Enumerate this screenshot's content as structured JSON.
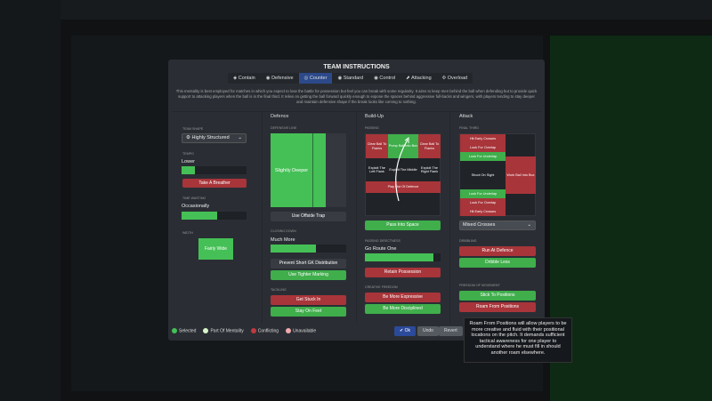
{
  "title": "TEAM INSTRUCTIONS",
  "mentalities": [
    {
      "label": "Contain",
      "icon": "contain-icon"
    },
    {
      "label": "Defensive",
      "icon": "defensive-icon"
    },
    {
      "label": "Counter",
      "icon": "counter-icon",
      "selected": true
    },
    {
      "label": "Standard",
      "icon": "standard-icon"
    },
    {
      "label": "Control",
      "icon": "control-icon"
    },
    {
      "label": "Attacking",
      "icon": "attacking-icon"
    },
    {
      "label": "Overload",
      "icon": "overload-icon"
    }
  ],
  "description": "This mentality is best employed for matches in which you expect to lose the battle for possession but feel you can break with some regularity.  It aims to keep men behind the ball when defending but to provide quick support to attacking players when the ball is in the final third. It relies on getting the ball forward quickly enough to expose the spaces behind aggressive full-backs and wingers, with players tending to stay deeper and maintain defensive shape if the break looks like coming to nothing.",
  "general": {
    "team_shape_label": "TEAM SHAPE",
    "team_shape": "Highly Structured",
    "tempo_label": "TEMPO",
    "tempo": "Lower",
    "tempo_level": 0.2,
    "tempo_button": "Take A Breather",
    "time_wasting_label": "TIME WASTING",
    "time_wasting": "Occasionally",
    "time_wasting_level": 0.55,
    "width_label": "WIDTH",
    "width": "Fairly Wide"
  },
  "defence": {
    "header": "Defence",
    "line_label": "DEFENSIVE LINE",
    "line": "Slightly Deeper",
    "offside": "Use Offside Trap",
    "closing_label": "CLOSING DOWN",
    "closing": "Much More",
    "closing_level": 0.6,
    "prevent_gk": "Prevent Short GK Distribution",
    "tighter": "Use Tighter Marking",
    "tackling_label": "TACKLING",
    "stuck_in": "Get Stuck In",
    "stay_feet": "Stay On Feet"
  },
  "buildup": {
    "header": "Build-Up",
    "passing_label": "PASSING",
    "clear_left": "Clear Ball To Flanks",
    "pump": "Pump Ball Into Box",
    "clear_right": "Clear Ball To Flanks",
    "exploit_left": "Exploit The Left Flank",
    "exploit_mid": "Exploit The Middle",
    "exploit_right": "Exploit The Right Flank",
    "play_out": "Play Out Of Defence",
    "space": "Pass Into Space",
    "directness_label": "PASSING DIRECTNESS",
    "directness": "Go Route One",
    "directness_level": 0.9,
    "retain": "Retain Possession",
    "creative_label": "CREATIVE FREEDOM",
    "expressive": "Be More Expressive",
    "disciplined": "Be More Disciplined"
  },
  "attack": {
    "header": "Attack",
    "final_third_label": "FINAL THIRD",
    "early1": "Hit Early Crosses",
    "overlap1": "Look For Overlap",
    "underlap1": "Look For Underlap",
    "shoot": "Shoot On Sight",
    "work_ball": "Work Ball Into Box",
    "underlap2": "Look For Underlap",
    "overlap2": "Look For Overlap",
    "early2": "Hit Early Crosses",
    "crosses": "Mixed Crosses",
    "dribbling_label": "DRIBBLING",
    "run_defence": "Run At Defence",
    "dribble_less": "Dribble Less",
    "freedom_label": "FREEDOM OF MOVEMENT",
    "stick": "Stick To Positions",
    "roam": "Roam From Positions"
  },
  "legend": {
    "selected": "Selected",
    "mentality": "Part Of Mentality",
    "conflicting": "Conflicting",
    "unavailable": "Unavailable"
  },
  "footer": {
    "ok": "Ok",
    "undo": "Undo",
    "revert": "Revert"
  },
  "tooltip": "Roam From Positions will allow players to be more creative and fluid with their positional locations on the pitch. It demands sufficient tactical awareness for one player to understand where he must fill in should another roam elsewhere.",
  "colors": {
    "selected": "#45c056",
    "mentality": "#d8f5c8",
    "conflicting": "#c0393e",
    "unavailable": "#f2a9ae",
    "accent": "#2c4a8a"
  }
}
